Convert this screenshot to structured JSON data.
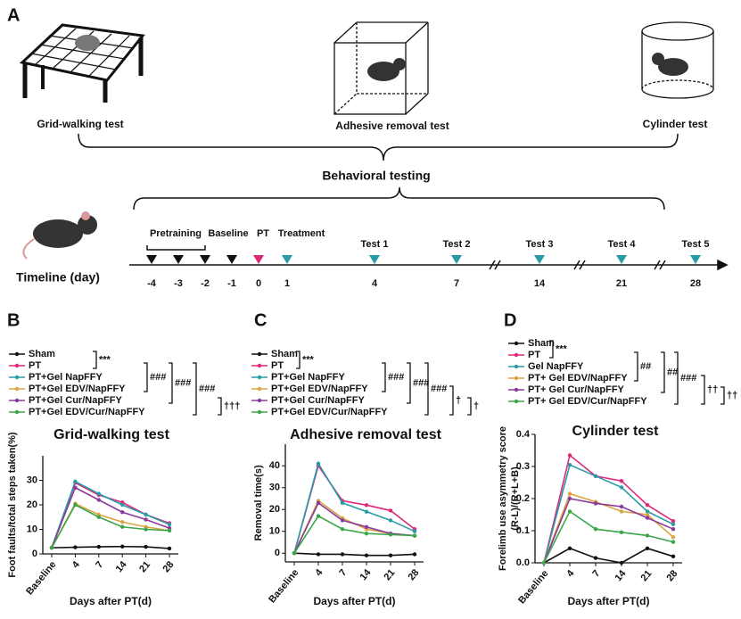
{
  "panel_a": {
    "label": "A",
    "tests": [
      "Grid-walking test",
      "Adhesive removal test",
      "Cylinder test"
    ],
    "heading": "Behavioral testing",
    "timeline_label": "Timeline (day)",
    "phases": [
      "Pretraining",
      "Baseline",
      "PT",
      "Treatment"
    ],
    "test_labels": [
      "Test 1",
      "Test 2",
      "Test 3",
      "Test 4",
      "Test 5"
    ],
    "days": [
      -4,
      -3,
      -2,
      -1,
      0,
      1,
      4,
      7,
      14,
      21,
      28
    ]
  },
  "chart_data": [
    {
      "type": "line",
      "panel": "B",
      "title": "Grid-walking test",
      "xlabel": "Days after PT(d)",
      "ylabel": [
        "Foot faults/total steps taken(%)"
      ],
      "categories": [
        "Baseline",
        "4",
        "7",
        "14",
        "21",
        "28"
      ],
      "ylim": [
        0,
        40
      ],
      "yticks": [
        0,
        10,
        20,
        30
      ],
      "series": [
        {
          "name": "Sham",
          "color": "#111111",
          "values": [
            2.5,
            2.7,
            2.9,
            3.0,
            2.9,
            2.2
          ]
        },
        {
          "name": "PT",
          "color": "#e0287a",
          "values": [
            2.5,
            29,
            24,
            21,
            16,
            12.5
          ]
        },
        {
          "name": "PT+Gel NapFFY",
          "color": "#2a9aa8",
          "values": [
            2.5,
            29.5,
            24.5,
            20,
            16,
            12
          ]
        },
        {
          "name": "PT+Gel EDV/NapFFY",
          "color": "#d9a441",
          "values": [
            2.5,
            20.5,
            16,
            13,
            11,
            9.5
          ]
        },
        {
          "name": "PT+Gel Cur/NapFFY",
          "color": "#8b3a9c",
          "values": [
            2.5,
            27,
            22,
            17,
            14,
            10.5
          ]
        },
        {
          "name": "PT+Gel EDV/Cur/NapFFY",
          "color": "#3aa64a",
          "values": [
            2.5,
            20,
            15,
            11,
            10,
            9.5
          ]
        }
      ],
      "annotations": [
        "***",
        "###",
        "###",
        "###",
        "†††"
      ]
    },
    {
      "type": "line",
      "panel": "C",
      "title": "Adhesive removal test",
      "xlabel": "Days after PT(d)",
      "ylabel": [
        "Removal time(s)"
      ],
      "categories": [
        "Baseline",
        "4",
        "7",
        "14",
        "21",
        "28"
      ],
      "ylim": [
        -4,
        50
      ],
      "yticks": [
        0,
        10,
        20,
        30,
        40
      ],
      "series": [
        {
          "name": "Sham",
          "color": "#111111",
          "values": [
            0,
            -0.5,
            -0.5,
            -1,
            -1,
            -0.5
          ]
        },
        {
          "name": "PT",
          "color": "#e0287a",
          "values": [
            0,
            40,
            24,
            22,
            19.5,
            11
          ]
        },
        {
          "name": "PT+Gel NapFFY",
          "color": "#2a9aa8",
          "values": [
            0,
            41,
            23,
            19,
            15,
            10
          ]
        },
        {
          "name": "PT+Gel EDV/NapFFY",
          "color": "#d9a441",
          "values": [
            0,
            24,
            16,
            11,
            9,
            8
          ]
        },
        {
          "name": "PT+Gel Cur/NapFFY",
          "color": "#8b3a9c",
          "values": [
            0,
            23,
            15,
            12,
            9,
            8
          ]
        },
        {
          "name": "PT+Gel EDV/Cur/NapFFY",
          "color": "#3aa64a",
          "values": [
            0,
            17,
            11,
            9,
            8.5,
            8
          ]
        }
      ],
      "annotations": [
        "***",
        "###",
        "###",
        "###",
        "†",
        "†"
      ]
    },
    {
      "type": "line",
      "panel": "D",
      "title": "Cylinder test",
      "xlabel": "Days after PT(d)",
      "ylabel": [
        "Forelimb use asymmetry score",
        "(R-L)/(R+L+B)"
      ],
      "categories": [
        "Baseline",
        "4",
        "7",
        "14",
        "21",
        "28"
      ],
      "ylim": [
        0,
        0.4
      ],
      "yticks": [
        {
          "value": 0,
          "label": "0.0"
        },
        0.1,
        0.2,
        0.3,
        0.4
      ],
      "series": [
        {
          "name": "Sham",
          "color": "#111111",
          "values": [
            0,
            0.045,
            0.015,
            0,
            0.045,
            0.02
          ]
        },
        {
          "name": "PT",
          "color": "#e0287a",
          "values": [
            0,
            0.335,
            0.27,
            0.255,
            0.18,
            0.13
          ]
        },
        {
          "name": "Gel NapFFY",
          "color": "#2a9aa8",
          "values": [
            0,
            0.305,
            0.27,
            0.235,
            0.16,
            0.12
          ]
        },
        {
          "name": "PT+ Gel EDV/NapFFY",
          "color": "#d9a441",
          "values": [
            0,
            0.215,
            0.19,
            0.16,
            0.15,
            0.08
          ]
        },
        {
          "name": "PT+ Gel Cur/NapFFY",
          "color": "#8b3a9c",
          "values": [
            0,
            0.2,
            0.185,
            0.175,
            0.14,
            0.105
          ]
        },
        {
          "name": "PT+ Gel EDV/Cur/NapFFY",
          "color": "#3aa64a",
          "values": [
            0,
            0.16,
            0.105,
            0.095,
            0.085,
            0.065
          ]
        }
      ],
      "annotations": [
        "***",
        "##",
        "##",
        "###",
        "††",
        "††"
      ]
    }
  ]
}
